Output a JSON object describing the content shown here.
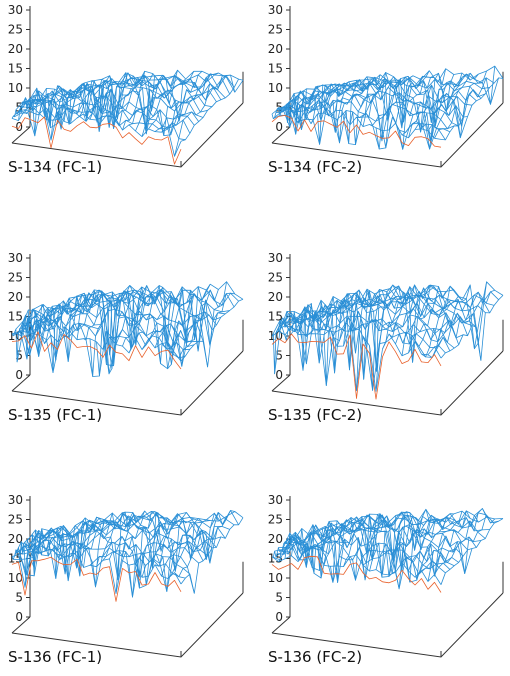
{
  "figure": {
    "colors": {
      "surface_top": "#2a8fd6",
      "surface_under": "#e8612c",
      "axis": "#333333"
    }
  },
  "chart_data": [
    {
      "type": "surface",
      "label": "S-134 (FC-1)",
      "zlim": [
        0,
        30
      ],
      "z_ticks": [
        0,
        5,
        10,
        15,
        20,
        25,
        30
      ],
      "base_level": 9,
      "amplitude": 4.5,
      "dip_level": 1.5,
      "seed": 11
    },
    {
      "type": "surface",
      "label": "S-134 (FC-2)",
      "zlim": [
        0,
        30
      ],
      "z_ticks": [
        0,
        5,
        10,
        15,
        20,
        25,
        30
      ],
      "base_level": 9,
      "amplitude": 4.5,
      "dip_level": 0,
      "seed": 23
    },
    {
      "type": "surface",
      "label": "S-135 (FC-1)",
      "zlim": [
        0,
        30
      ],
      "z_ticks": [
        0,
        5,
        10,
        15,
        20,
        25,
        30
      ],
      "base_level": 17,
      "amplitude": 6,
      "dip_level": 5,
      "seed": 37
    },
    {
      "type": "surface",
      "label": "S-135 (FC-2)",
      "zlim": [
        0,
        30
      ],
      "z_ticks": [
        0,
        5,
        10,
        15,
        20,
        25,
        30
      ],
      "base_level": 17,
      "amplitude": 6,
      "dip_level": 2,
      "seed": 41
    },
    {
      "type": "surface",
      "label": "S-136 (FC-1)",
      "zlim": [
        0,
        30
      ],
      "z_ticks": [
        0,
        5,
        10,
        15,
        20,
        25,
        30
      ],
      "base_level": 22,
      "amplitude": 5,
      "dip_level": 12,
      "seed": 53
    },
    {
      "type": "surface",
      "label": "S-136 (FC-2)",
      "zlim": [
        0,
        30
      ],
      "z_ticks": [
        0,
        5,
        10,
        15,
        20,
        25,
        30
      ],
      "base_level": 22,
      "amplitude": 5,
      "dip_level": 13,
      "seed": 67
    }
  ]
}
